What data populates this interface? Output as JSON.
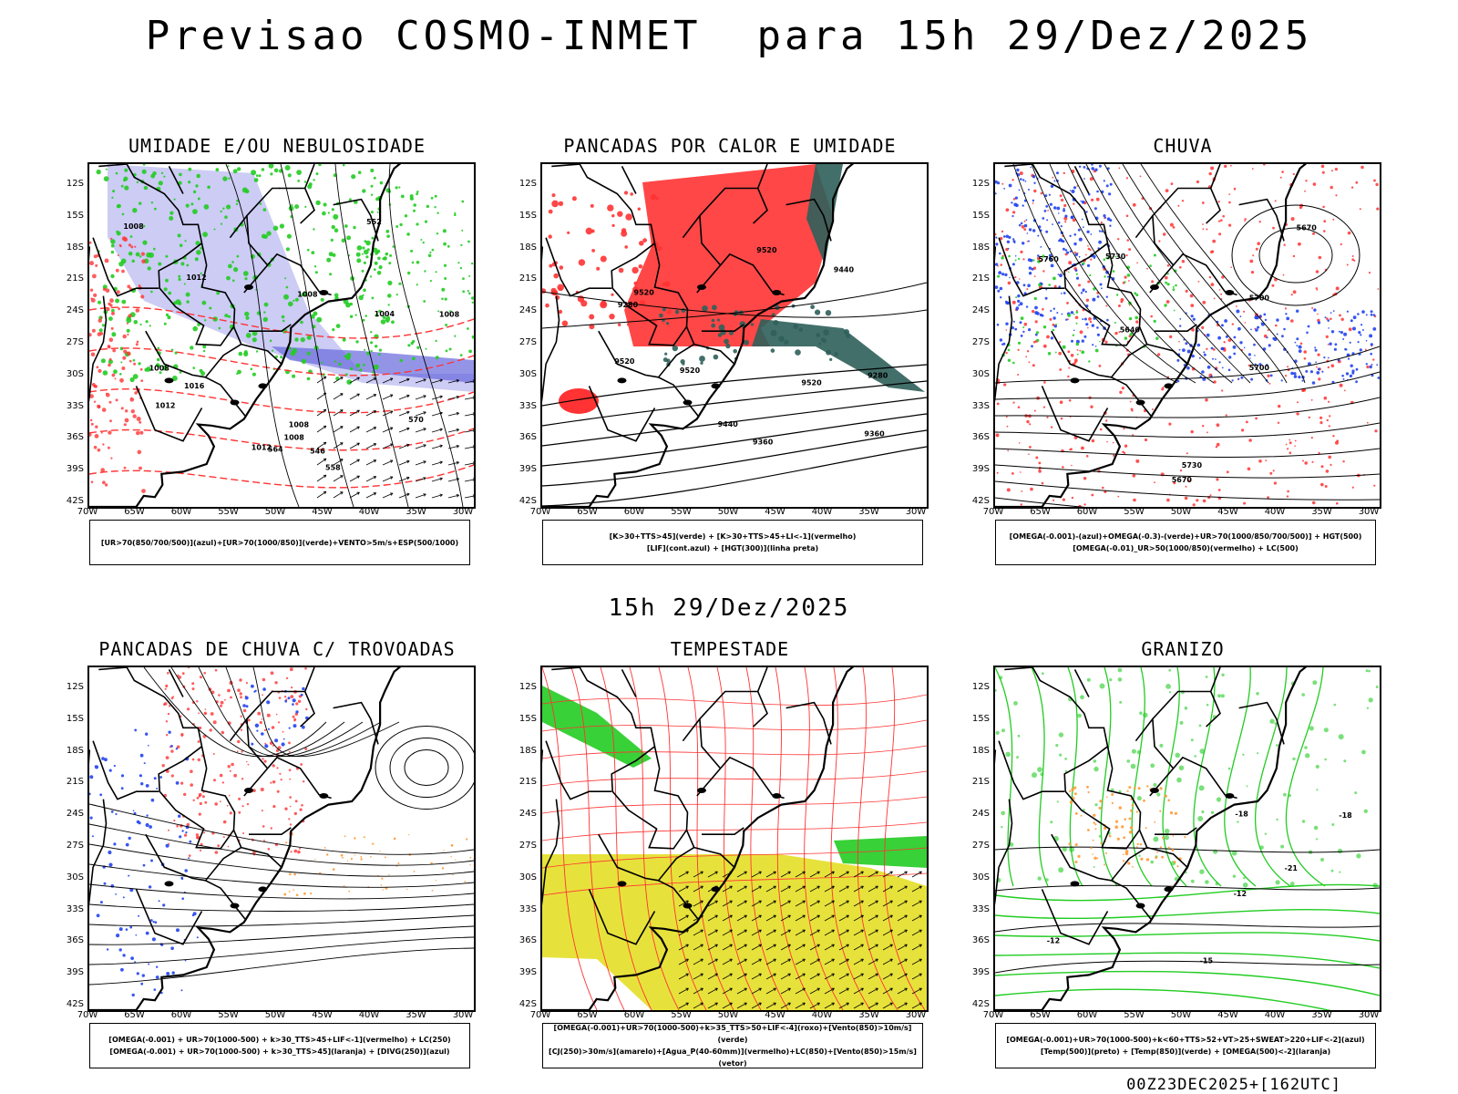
{
  "header": {
    "title": "Previsao COSMO-INMET  para 15h 29/Dez/2025"
  },
  "middle_title": "15h 29/Dez/2025",
  "footer": "00Z23DEC2025+[162UTC]",
  "axes": {
    "lat_labels": [
      "12S",
      "15S",
      "18S",
      "21S",
      "24S",
      "27S",
      "30S",
      "33S",
      "36S",
      "39S",
      "42S"
    ],
    "lon_labels": [
      "70W",
      "65W",
      "60W",
      "55W",
      "50W",
      "45W",
      "40W",
      "35W",
      "30W"
    ]
  },
  "panels": [
    {
      "title": "UMIDADE E/OU NEBULOSIDADE",
      "legend": [
        "[UR>70(850/700/500)](azul)+[UR>70(1000/850)](verde)+VENTO>5m/s+ESP(500/1000)"
      ],
      "contour_labels": [
        "1012",
        "1008",
        "1008",
        "1008",
        "1008",
        "1012",
        "1008",
        "1008",
        "1004",
        "1012",
        "1016",
        "570",
        "564",
        "558",
        "552",
        "546"
      ]
    },
    {
      "title": "PANCADAS POR CALOR E UMIDADE",
      "legend": [
        "[K>30+TTS>45](verde) + [K>30+TTS>45+LI<-1](vermelho)",
        "[LIF](cont.azul) + [HGT(300)](linha preta)"
      ],
      "contour_labels": [
        "9520",
        "9520",
        "9520",
        "9520",
        "9520",
        "9440",
        "9440",
        "9360",
        "9360",
        "9280",
        "9280"
      ]
    },
    {
      "title": "CHUVA",
      "legend": [
        "[OMEGA(-0.001)-(azul)+OMEGA(-0.3)-(verde)+UR>70(1000/850/700/500)] + HGT(500)",
        "[OMEGA(-0.01)_UR>50(1000/850)(vermelho) + LC(500)"
      ],
      "contour_labels": [
        "5760",
        "5730",
        "5700",
        "5730",
        "5670",
        "5670",
        "5700",
        "5640"
      ]
    },
    {
      "title": "PANCADAS DE CHUVA C/ TROVOADAS",
      "legend": [
        "[OMEGA(-0.001) + UR>70(1000-500) + k>30_TTS>45+LIF<-1](vermelho) + LC(250)",
        "[OMEGA(-0.001) + UR>70(1000-500) + k>30_TTS>45](laranja) + [DIVG(250)](azul)"
      ],
      "contour_labels": []
    },
    {
      "title": "TEMPESTADE",
      "legend": [
        "[OMEGA(-0.001)+UR>70(1000-500)+k>35_TTS>50+LIF<-4](roxo)+[Vento(850)>10m/s](verde)",
        "[CJ(250)>30m/s](amarelo)+[Agua_P(40-60mm)](vermelho)+LC(850)+[Vento(850)>15m/s](vetor)"
      ],
      "contour_labels": []
    },
    {
      "title": "GRANIZO",
      "legend": [
        "[OMEGA(-0.001)+UR>70(1000-500)+k<60+TTS>52+VT>25+SWEAT>220+LIF<-2](azul)",
        "[Temp(500)](preto) + [Temp(850)](verde) + [OMEGA(500)<-2](laranja)"
      ],
      "contour_labels": [
        "-12",
        "-12",
        "-15",
        "-18",
        "-18",
        "-21"
      ]
    }
  ],
  "colors": {
    "red": "#ff3333",
    "green": "#22cc22",
    "blue": "#2244ee",
    "lavender": "#aaaaee",
    "darkteal": "#2f5f5a",
    "yellow": "#e6e030",
    "orange": "#ff9933",
    "black": "#000000"
  }
}
